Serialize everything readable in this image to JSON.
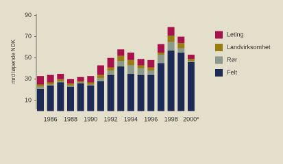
{
  "chart_data": {
    "type": "bar",
    "stacked": true,
    "y_label": "mrd løpende NOK",
    "categories": [
      null,
      "1986",
      null,
      "1988",
      null,
      "1990",
      null,
      "1992",
      null,
      "1994",
      null,
      "1996",
      null,
      "1998",
      null,
      "2000*"
    ],
    "series": [
      {
        "name": "Felt",
        "color": "#1c2a55",
        "values": [
          21,
          24,
          27,
          23,
          26,
          24,
          28,
          34,
          42,
          35,
          34,
          34,
          45,
          57,
          55,
          46
        ]
      },
      {
        "name": "Rør",
        "color": "#8c9a8c",
        "values": [
          2,
          1,
          1,
          1,
          1,
          1,
          3,
          4,
          5,
          8,
          6,
          4,
          8,
          8,
          4,
          1
        ]
      },
      {
        "name": "Landvirksomhet",
        "color": "#9a7d12",
        "values": [
          2,
          2,
          2,
          2,
          1,
          2,
          3,
          3,
          5,
          5,
          3,
          3,
          2,
          6,
          5,
          2
        ]
      },
      {
        "name": "Leting",
        "color": "#a8124c",
        "values": [
          8,
          7,
          5,
          4,
          4,
          6,
          9,
          9,
          6,
          7,
          6,
          7,
          8,
          8,
          6,
          4
        ]
      }
    ],
    "ylim": [
      0,
      90
    ],
    "yticks": [
      10,
      30,
      50,
      70,
      90
    ]
  }
}
